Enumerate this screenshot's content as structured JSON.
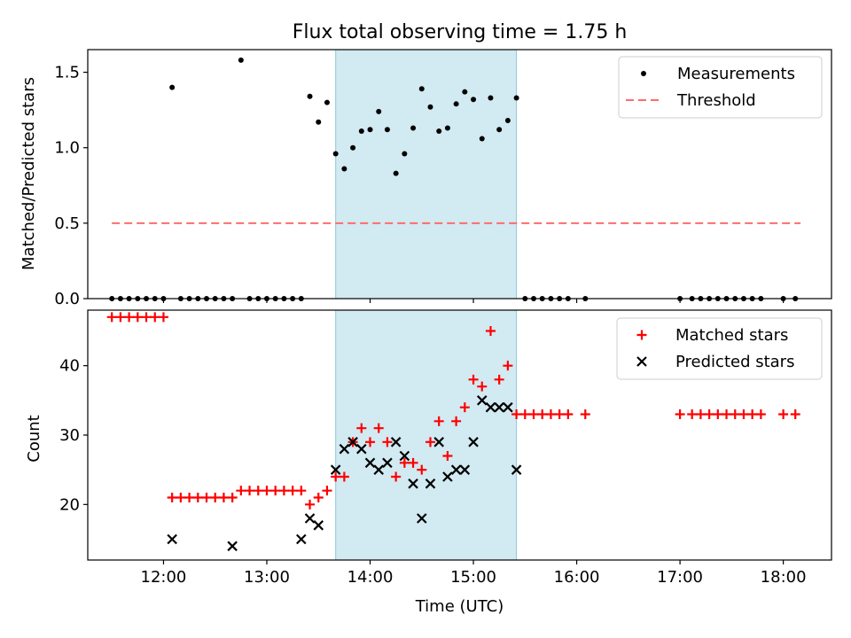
{
  "chart_data": [
    {
      "type": "scatter",
      "title": "Flux total observing time = 1.75 h",
      "xlabel": "",
      "ylabel": "Matched/Predicted stars",
      "xlim": [
        "11:16",
        "18:28"
      ],
      "ylim": [
        0.0,
        1.65
      ],
      "yticks": [
        0.0,
        0.5,
        1.0,
        1.5
      ],
      "ytick_labels": [
        "0.0",
        "0.5",
        "1.0",
        "1.5"
      ],
      "grid": false,
      "legend_position": "upper right",
      "shaded_interval": {
        "start": "13:40",
        "end": "15:25",
        "color": "#add8e6"
      },
      "series": [
        {
          "name": "Measurements",
          "marker": "dot",
          "color": "#000000",
          "x": [
            "11:30",
            "11:35",
            "11:40",
            "11:45",
            "11:50",
            "11:55",
            "12:00",
            "12:05",
            "12:10",
            "12:15",
            "12:20",
            "12:25",
            "12:30",
            "12:35",
            "12:40",
            "12:45",
            "12:50",
            "12:55",
            "13:00",
            "13:05",
            "13:10",
            "13:15",
            "13:20",
            "13:25",
            "13:30",
            "13:35",
            "13:40",
            "13:45",
            "13:50",
            "13:55",
            "14:00",
            "14:05",
            "14:10",
            "14:15",
            "14:20",
            "14:25",
            "14:30",
            "14:35",
            "14:40",
            "14:45",
            "14:50",
            "14:55",
            "15:00",
            "15:05",
            "15:10",
            "15:15",
            "15:20",
            "15:25",
            "15:30",
            "15:35",
            "15:40",
            "15:45",
            "15:50",
            "15:55",
            "16:05",
            "17:00",
            "17:07",
            "17:12",
            "17:17",
            "17:22",
            "17:27",
            "17:32",
            "17:37",
            "17:42",
            "17:47",
            "18:00",
            "18:07"
          ],
          "y": [
            0,
            0,
            0,
            0,
            0,
            0,
            0,
            1.4,
            0,
            0,
            0,
            0,
            0,
            0,
            0,
            1.58,
            0,
            0,
            0,
            0,
            0,
            0,
            0,
            1.34,
            1.17,
            1.3,
            0.96,
            0.86,
            1.0,
            1.11,
            1.12,
            1.24,
            1.12,
            0.83,
            0.96,
            1.13,
            1.39,
            1.27,
            1.11,
            1.13,
            1.29,
            1.37,
            1.32,
            1.06,
            1.33,
            1.12,
            1.18,
            1.33,
            0,
            0,
            0,
            0,
            0,
            0,
            0,
            0,
            0,
            0,
            0,
            0,
            0,
            0,
            0,
            0,
            0,
            0,
            0
          ]
        },
        {
          "name": "Threshold",
          "type": "line",
          "style": "dashed",
          "color": "#ff6b6b",
          "x": [
            "11:30",
            "18:10"
          ],
          "y": [
            0.5,
            0.5
          ]
        }
      ]
    },
    {
      "type": "scatter",
      "title": "",
      "xlabel": "Time (UTC)",
      "ylabel": "Count",
      "xlim": [
        "11:16",
        "18:28"
      ],
      "ylim": [
        12,
        48
      ],
      "yticks": [
        20,
        30,
        40
      ],
      "ytick_labels": [
        "20",
        "30",
        "40"
      ],
      "xticks": [
        "12:00",
        "13:00",
        "14:00",
        "15:00",
        "16:00",
        "17:00",
        "18:00"
      ],
      "xtick_labels": [
        "12:00",
        "13:00",
        "14:00",
        "15:00",
        "16:00",
        "17:00",
        "18:00"
      ],
      "grid": false,
      "legend_position": "upper right",
      "shaded_interval": {
        "start": "13:40",
        "end": "15:25",
        "color": "#add8e6"
      },
      "series": [
        {
          "name": "Matched stars",
          "marker": "plus",
          "color": "#ff0000",
          "x": [
            "11:30",
            "11:35",
            "11:40",
            "11:45",
            "11:50",
            "11:55",
            "12:00",
            "12:05",
            "12:10",
            "12:15",
            "12:20",
            "12:25",
            "12:30",
            "12:35",
            "12:40",
            "12:45",
            "12:50",
            "12:55",
            "13:00",
            "13:05",
            "13:10",
            "13:15",
            "13:20",
            "13:25",
            "13:30",
            "13:35",
            "13:40",
            "13:45",
            "13:50",
            "13:55",
            "14:00",
            "14:05",
            "14:10",
            "14:15",
            "14:20",
            "14:25",
            "14:30",
            "14:35",
            "14:40",
            "14:45",
            "14:50",
            "14:55",
            "15:00",
            "15:05",
            "15:10",
            "15:15",
            "15:20",
            "15:25",
            "15:30",
            "15:35",
            "15:40",
            "15:45",
            "15:50",
            "15:55",
            "16:05",
            "17:00",
            "17:07",
            "17:12",
            "17:17",
            "17:22",
            "17:27",
            "17:32",
            "17:37",
            "17:42",
            "17:47",
            "18:00",
            "18:07"
          ],
          "y": [
            47,
            47,
            47,
            47,
            47,
            47,
            47,
            21,
            21,
            21,
            21,
            21,
            21,
            21,
            21,
            22,
            22,
            22,
            22,
            22,
            22,
            22,
            22,
            20,
            21,
            22,
            24,
            24,
            29,
            31,
            29,
            31,
            29,
            24,
            26,
            26,
            25,
            29,
            32,
            27,
            32,
            34,
            38,
            37,
            45,
            38,
            40,
            33,
            33,
            33,
            33,
            33,
            33,
            33,
            33,
            33,
            33,
            33,
            33,
            33,
            33,
            33,
            33,
            33,
            33,
            33,
            33
          ]
        },
        {
          "name": "Predicted stars",
          "marker": "x",
          "color": "#000000",
          "x": [
            "12:05",
            "12:40",
            "13:20",
            "13:25",
            "13:30",
            "13:40",
            "13:45",
            "13:50",
            "13:55",
            "14:00",
            "14:05",
            "14:10",
            "14:15",
            "14:20",
            "14:25",
            "14:30",
            "14:35",
            "14:40",
            "14:45",
            "14:50",
            "14:55",
            "15:00",
            "15:05",
            "15:10",
            "15:15",
            "15:20",
            "15:25"
          ],
          "y": [
            15,
            14,
            15,
            18,
            17,
            25,
            28,
            29,
            28,
            26,
            25,
            26,
            29,
            27,
            23,
            18,
            23,
            29,
            24,
            25,
            25,
            29,
            35,
            34,
            34,
            34,
            25
          ]
        }
      ]
    }
  ]
}
